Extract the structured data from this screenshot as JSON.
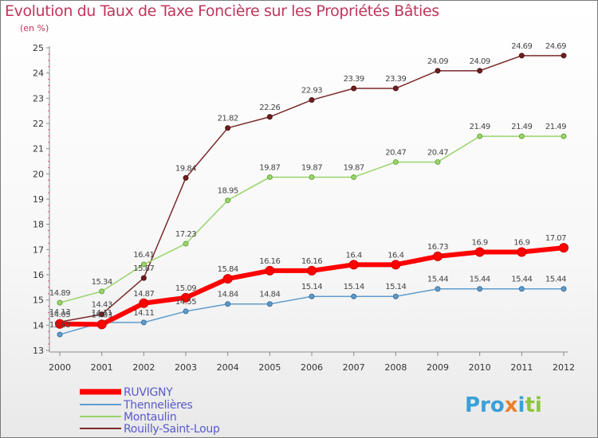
{
  "header": {
    "title": "Evolution du Taux de Taxe Foncière sur les Propriétés Bâties",
    "unit": "(en %)"
  },
  "brand": {
    "parts": [
      "Pro",
      "x",
      "i",
      "ti"
    ],
    "colors": [
      "#3aa0d8",
      "#e8812c",
      "#3aa0d8",
      "#8cc63f"
    ]
  },
  "chart_data": {
    "type": "line",
    "title": "Evolution du Taux de Taxe Foncière sur les Propriétés Bâties",
    "ylabel": "(en %)",
    "xlabel": "",
    "x": [
      "2000",
      "2001",
      "2002",
      "2003",
      "2004",
      "2005",
      "2006",
      "2007",
      "2008",
      "2009",
      "2010",
      "2011",
      "2012"
    ],
    "ylim": [
      13,
      25
    ],
    "yticks": [
      "13",
      "14",
      "15",
      "16",
      "17",
      "18",
      "19",
      "20",
      "21",
      "22",
      "23",
      "24",
      "25"
    ],
    "grid": false,
    "legend_position": "bottom-left",
    "series": [
      {
        "name": "RUVIGNY",
        "color": "#ff0000",
        "values": [
          14.05,
          14.03,
          14.87,
          15.09,
          15.84,
          16.16,
          16.16,
          16.4,
          16.4,
          16.73,
          16.9,
          16.9,
          17.07
        ],
        "labels": [
          "14.05",
          "14.03",
          "14.87",
          "15.09",
          "15.84",
          "16.16",
          "16.16",
          "16.4",
          "16.4",
          "16.73",
          "16.9",
          "16.9",
          "17.07"
        ]
      },
      {
        "name": "Thennelières",
        "color": "#5f9ccc",
        "values": [
          13.63,
          14.11,
          14.11,
          14.55,
          14.84,
          14.84,
          15.14,
          15.14,
          15.14,
          15.44,
          15.44,
          15.44,
          15.44
        ],
        "labels": [
          "13.63",
          "14.11",
          "14.11",
          "14.55",
          "14.84",
          "14.84",
          "15.14",
          "15.14",
          "15.14",
          "15.44",
          "15.44",
          "15.44",
          "15.44"
        ]
      },
      {
        "name": "Montaulin",
        "color": "#99d46c",
        "values": [
          14.89,
          15.34,
          16.41,
          17.23,
          18.95,
          19.87,
          19.87,
          19.87,
          20.47,
          20.47,
          21.49,
          21.49,
          21.49
        ],
        "labels": [
          "14.89",
          "15.34",
          "16.41",
          "17.23",
          "18.95",
          "19.87",
          "19.87",
          "19.87",
          "20.47",
          "20.47",
          "21.49",
          "21.49",
          "21.49"
        ]
      },
      {
        "name": "Rouilly-Saint-Loup",
        "color": "#7b2a2a",
        "values": [
          14.13,
          14.43,
          15.87,
          19.84,
          21.82,
          22.26,
          22.93,
          23.39,
          23.39,
          24.09,
          24.09,
          24.69,
          24.69
        ],
        "labels": [
          "14.13",
          "14.43",
          "15.87",
          "19.84",
          "21.82",
          "22.26",
          "22.93",
          "23.39",
          "23.39",
          "24.09",
          "24.09",
          "24.69",
          "24.69"
        ]
      }
    ]
  }
}
